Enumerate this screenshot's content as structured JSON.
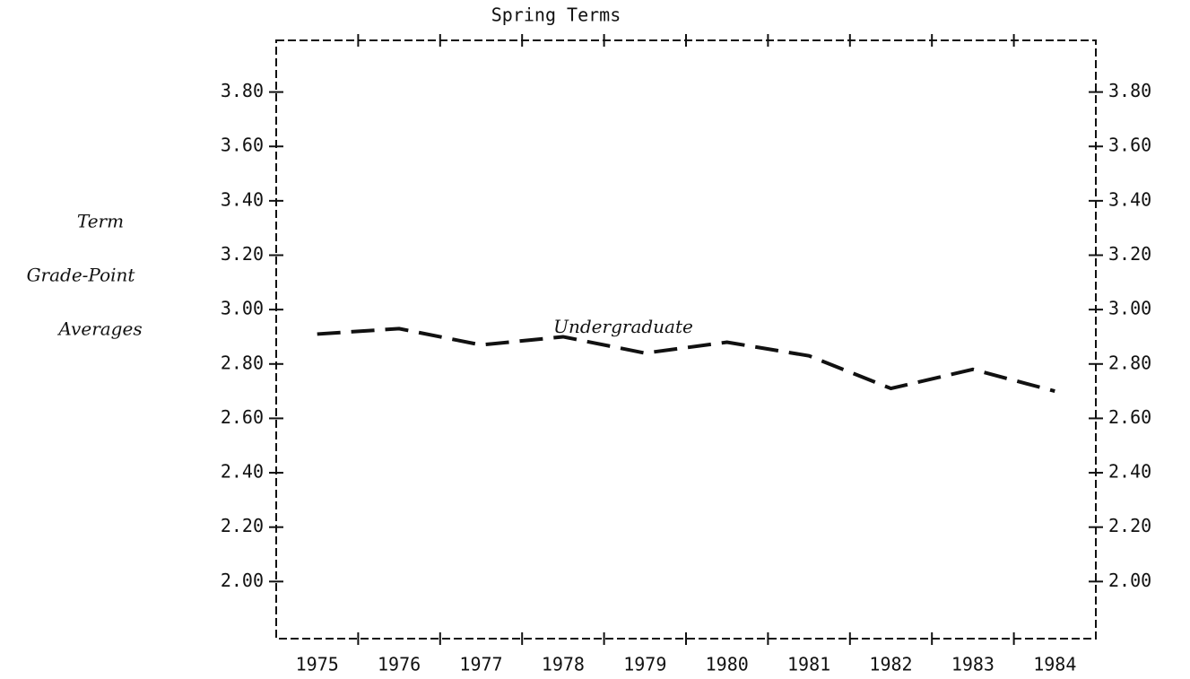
{
  "chart_data": {
    "type": "line",
    "title": "Spring Terms",
    "ylabel": [
      "Term",
      "Grade-Point",
      "Averages"
    ],
    "categories": [
      "1975",
      "1976",
      "1977",
      "1978",
      "1979",
      "1980",
      "1981",
      "1982",
      "1983",
      "1984"
    ],
    "series": [
      {
        "name": "Undergraduate",
        "color": "#111111",
        "values": [
          2.91,
          2.93,
          2.87,
          2.9,
          2.84,
          2.88,
          2.83,
          2.71,
          2.78,
          2.7
        ]
      }
    ],
    "ylim": [
      1.79,
      3.99
    ],
    "yticks": [
      {
        "value": 2.0,
        "label": "2.00"
      },
      {
        "value": 2.2,
        "label": "2.20"
      },
      {
        "value": 2.4,
        "label": "2.40"
      },
      {
        "value": 2.6,
        "label": "2.60"
      },
      {
        "value": 2.8,
        "label": "2.80"
      },
      {
        "value": 3.0,
        "label": "3.00"
      },
      {
        "value": 3.2,
        "label": "3.20"
      },
      {
        "value": 3.4,
        "label": "3.40"
      },
      {
        "value": 3.6,
        "label": "3.60"
      },
      {
        "value": 3.8,
        "label": "3.80"
      }
    ],
    "right_axis": true,
    "grid": false
  }
}
